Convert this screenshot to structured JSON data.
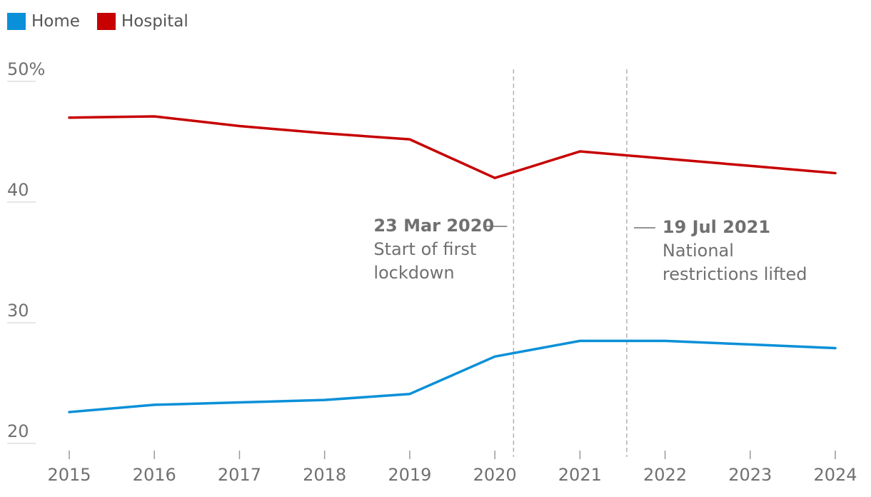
{
  "legend": [
    {
      "label": "Home",
      "color": "#0a90d8"
    },
    {
      "label": "Hospital",
      "color": "#c70000"
    }
  ],
  "chart_data": {
    "type": "line",
    "x": [
      2015,
      2016,
      2017,
      2018,
      2019,
      2020,
      2021,
      2022,
      2023,
      2024
    ],
    "series": [
      {
        "name": "Home",
        "color": "#0a90d8",
        "values": [
          22.6,
          23.2,
          23.4,
          23.6,
          24.1,
          27.2,
          28.5,
          28.5,
          28.2,
          27.9
        ]
      },
      {
        "name": "Hospital",
        "color": "#c70000",
        "values": [
          47.0,
          47.1,
          46.3,
          45.7,
          45.2,
          42.0,
          44.2,
          43.6,
          43.0,
          42.4
        ]
      }
    ],
    "ylim": [
      20,
      50
    ],
    "yticks": [
      20,
      30,
      40,
      50
    ],
    "ytick_labels": [
      "20",
      "30",
      "40",
      "50%"
    ],
    "xtick_labels": [
      "2015",
      "2016",
      "2017",
      "2018",
      "2019",
      "2020",
      "2021",
      "2022",
      "2023",
      "2024"
    ],
    "annotations": [
      {
        "x": 2020.22,
        "date": "23 Mar 2020",
        "text": [
          "Start of first",
          "lockdown"
        ],
        "side": "left"
      },
      {
        "x": 2021.55,
        "date": "19 Jul 2021",
        "text": [
          "National",
          "restrictions lifted"
        ],
        "side": "right"
      }
    ],
    "grid": "horizontal",
    "legend_position": "top-left"
  }
}
